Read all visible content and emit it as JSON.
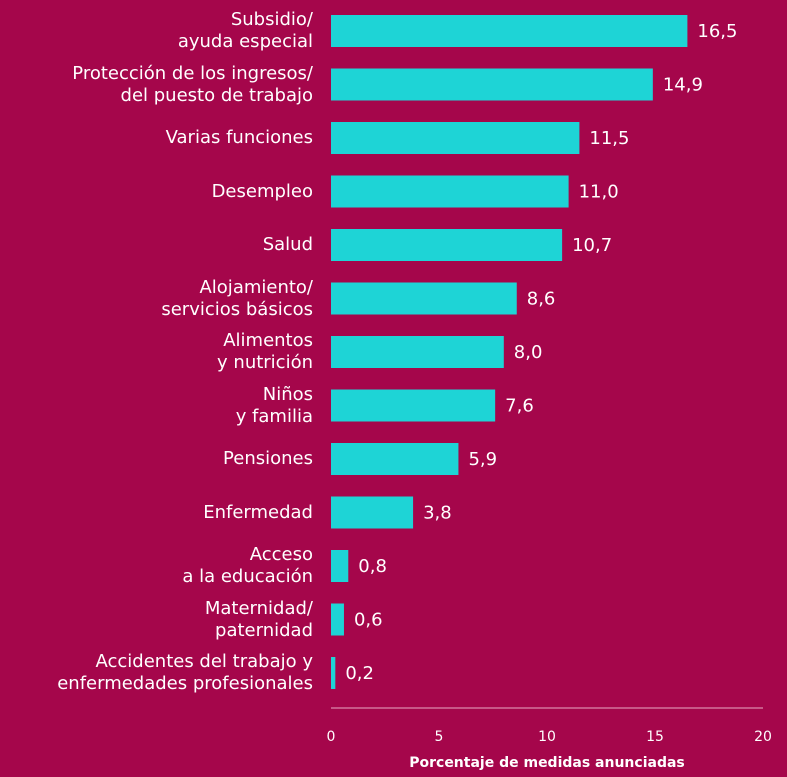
{
  "chart_data": {
    "type": "bar",
    "orientation": "horizontal",
    "categories": [
      "Subsidio/\nayuda especial",
      "Protección de los ingresos/\ndel puesto de trabajo",
      "Varias funciones",
      "Desempleo",
      "Salud",
      "Alojamiento/\nservicios básicos",
      "Alimentos\ny nutrición",
      "Niños\ny familia",
      "Pensiones",
      "Enfermedad",
      "Acceso\na la educación",
      "Maternidad/\npaternidad",
      "Accidentes del trabajo y\nenfermedades profesionales"
    ],
    "values": [
      16.5,
      14.9,
      11.5,
      11.0,
      10.7,
      8.6,
      8.0,
      7.6,
      5.9,
      3.8,
      0.8,
      0.6,
      0.2
    ],
    "value_labels": [
      "16,5",
      "14,9",
      "11,5",
      "11,0",
      "10,7",
      "8,6",
      "8,0",
      "7,6",
      "5,9",
      "3,8",
      "0,8",
      "0,6",
      "0,2"
    ],
    "color": "#1ed4d6",
    "xlabel": "Porcentaje de medidas anunciadas",
    "xlim": [
      0,
      20
    ],
    "xticks": [
      0,
      5,
      10,
      15,
      20
    ],
    "grid": false
  }
}
